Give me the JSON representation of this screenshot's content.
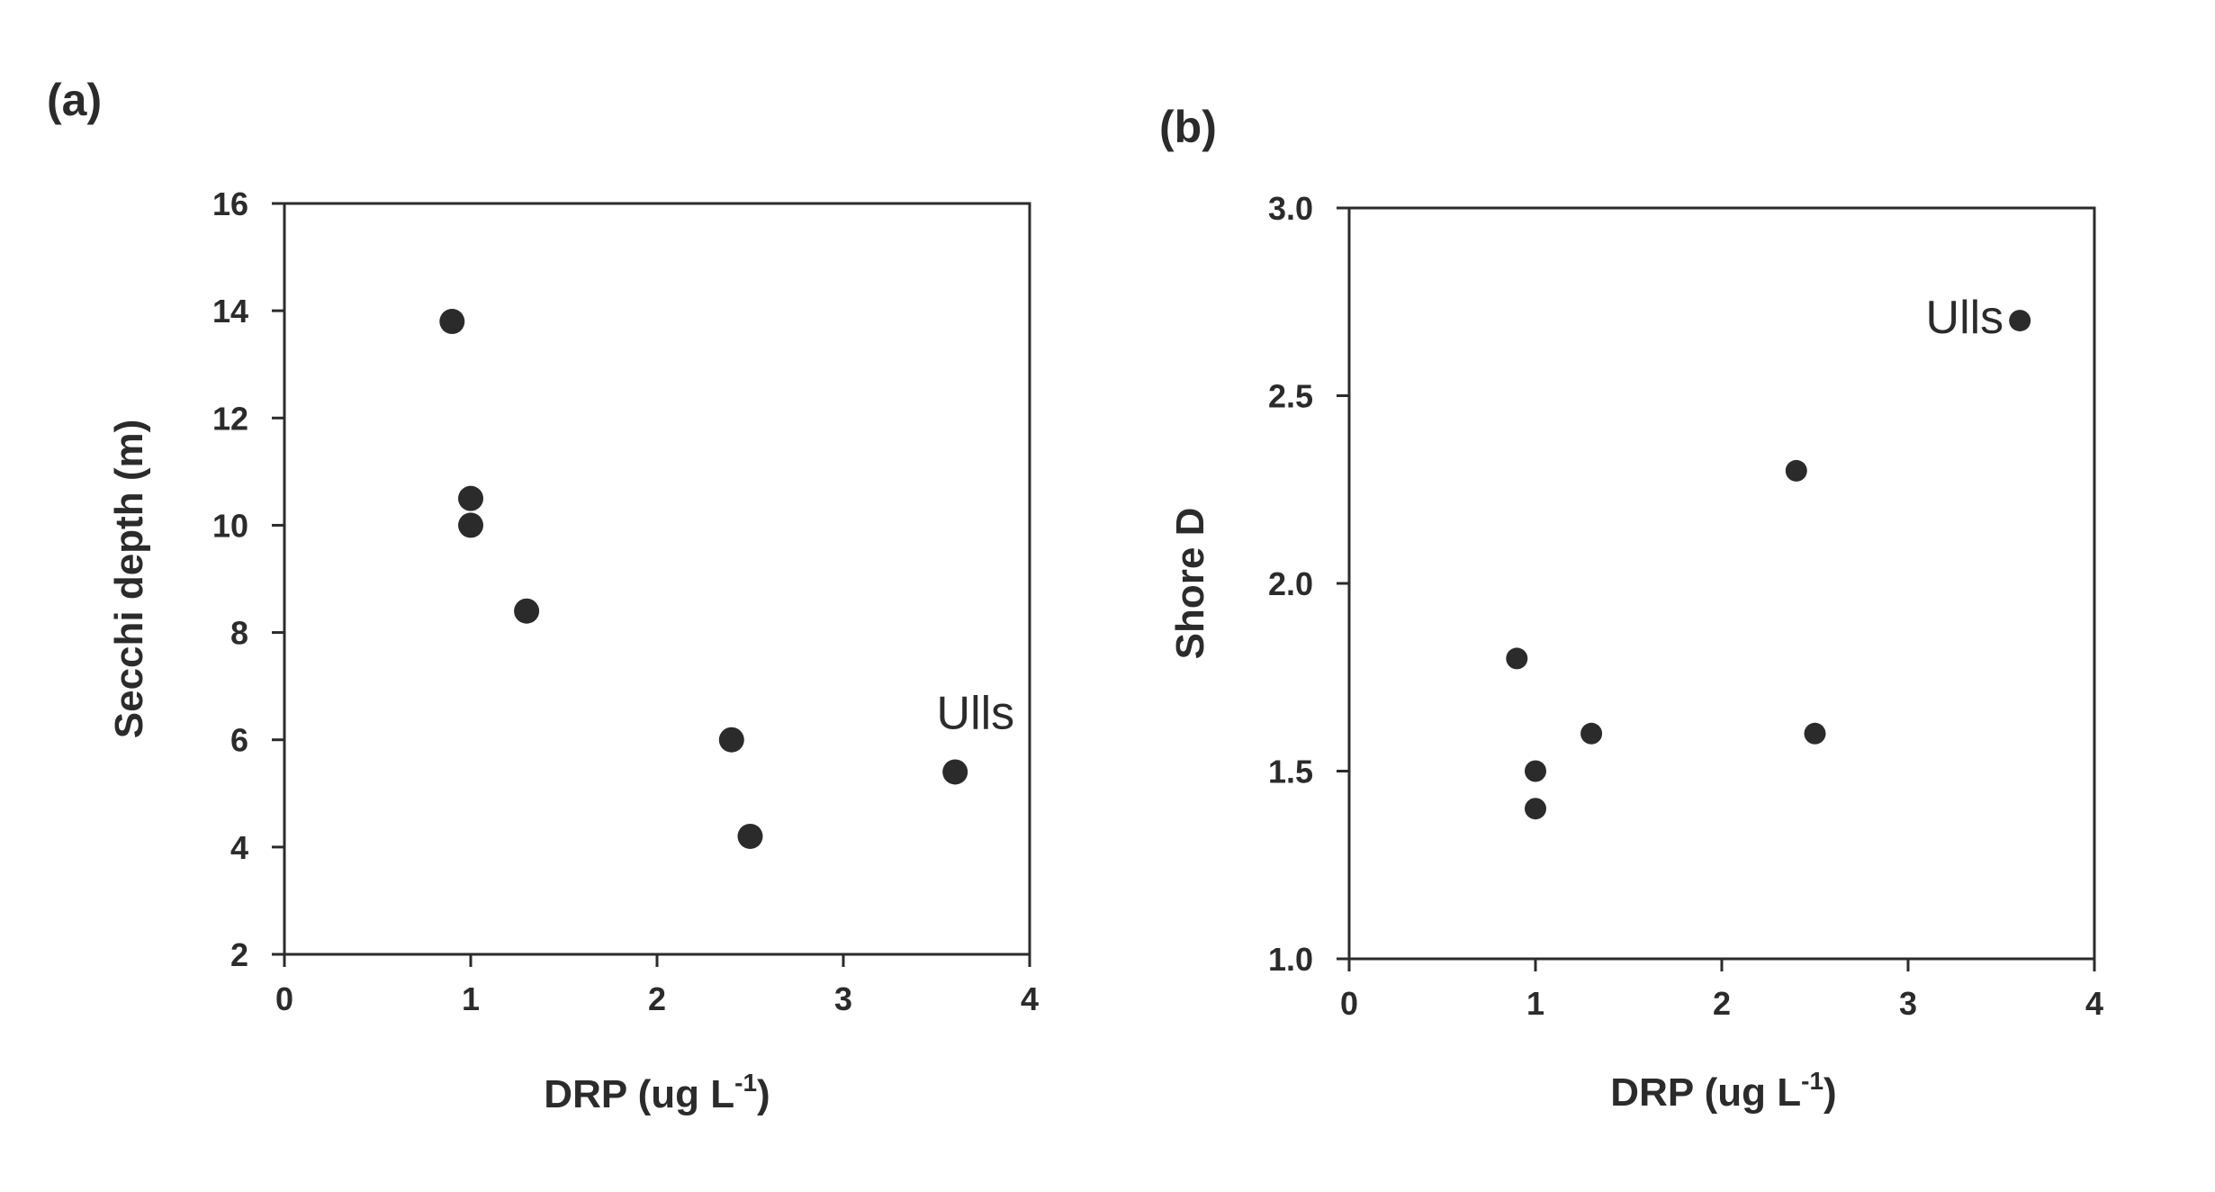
{
  "chart_data": [
    {
      "type": "scatter",
      "panel_label": "(a)",
      "xlabel": "DRP (ug L",
      "xlabel_sup": "-1",
      "xlabel_end": ")",
      "ylabel": "Secchi depth (m)",
      "xlim": [
        0,
        4
      ],
      "ylim": [
        2,
        16
      ],
      "xticks": [
        0,
        1,
        2,
        3,
        4
      ],
      "xtick_labels": [
        "0",
        "1",
        "2",
        "3",
        "4"
      ],
      "yticks": [
        2,
        4,
        6,
        8,
        10,
        12,
        14,
        16
      ],
      "ytick_labels": [
        "2",
        "4",
        "6",
        "8",
        "10",
        "12",
        "14",
        "16"
      ],
      "grid": false,
      "points": [
        {
          "x": 0.9,
          "y": 13.8
        },
        {
          "x": 1.0,
          "y": 10.5
        },
        {
          "x": 1.0,
          "y": 10.0
        },
        {
          "x": 1.3,
          "y": 8.4
        },
        {
          "x": 2.4,
          "y": 6.0
        },
        {
          "x": 2.5,
          "y": 4.2
        },
        {
          "x": 3.6,
          "y": 5.4
        }
      ],
      "annotations": [
        {
          "text": "Ulls",
          "x": 3.6,
          "y": 5.4
        }
      ]
    },
    {
      "type": "scatter",
      "panel_label": "(b)",
      "xlabel": "DRP (ug L",
      "xlabel_sup": "-1",
      "xlabel_end": ")",
      "ylabel": "Shore D",
      "xlim": [
        0,
        4
      ],
      "ylim": [
        1.0,
        3.0
      ],
      "xticks": [
        0,
        1,
        2,
        3,
        4
      ],
      "xtick_labels": [
        "0",
        "1",
        "2",
        "3",
        "4"
      ],
      "yticks": [
        1.0,
        1.5,
        2.0,
        2.5,
        3.0
      ],
      "ytick_labels": [
        "1.0",
        "1.5",
        "2.0",
        "2.5",
        "3.0"
      ],
      "grid": false,
      "points": [
        {
          "x": 0.9,
          "y": 1.8
        },
        {
          "x": 1.0,
          "y": 1.5
        },
        {
          "x": 1.0,
          "y": 1.4
        },
        {
          "x": 1.3,
          "y": 1.6
        },
        {
          "x": 2.4,
          "y": 2.3
        },
        {
          "x": 2.5,
          "y": 1.6
        },
        {
          "x": 3.6,
          "y": 2.7
        }
      ],
      "annotations": [
        {
          "text": "Ulls",
          "x": 3.6,
          "y": 2.7
        }
      ]
    }
  ]
}
